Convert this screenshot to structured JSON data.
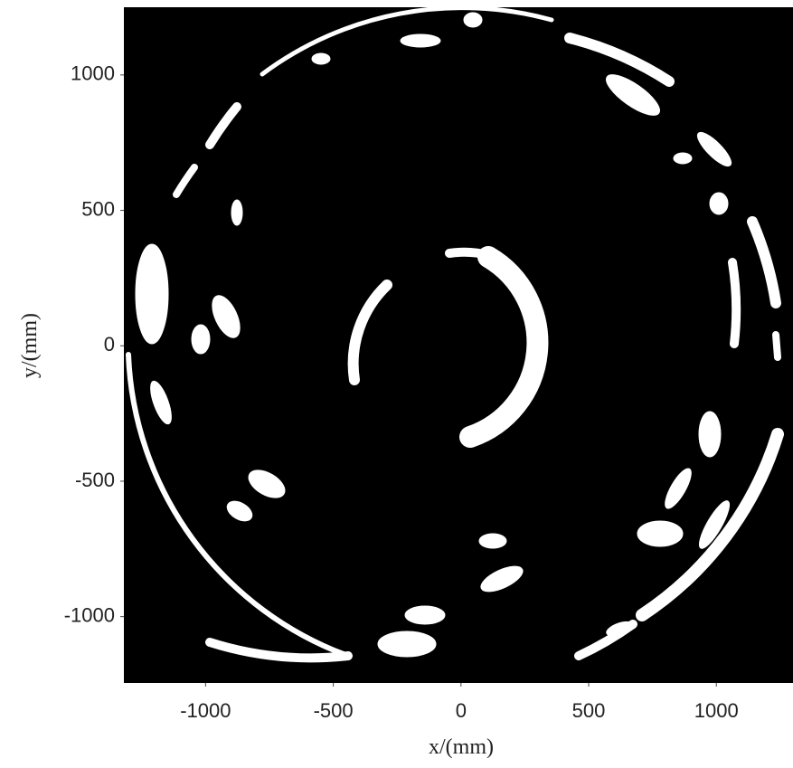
{
  "chart_data": {
    "type": "image",
    "xlabel": "x/(mm)",
    "ylabel": "y/(mm)",
    "xlim": [
      -1320,
      1300
    ],
    "ylim": [
      -1245,
      1250
    ],
    "xticks": [
      -1000,
      -500,
      0,
      500,
      1000
    ],
    "yticks": [
      -1000,
      -500,
      0,
      500,
      1000
    ],
    "background": "#000000",
    "foreground": "#ffffff"
  }
}
